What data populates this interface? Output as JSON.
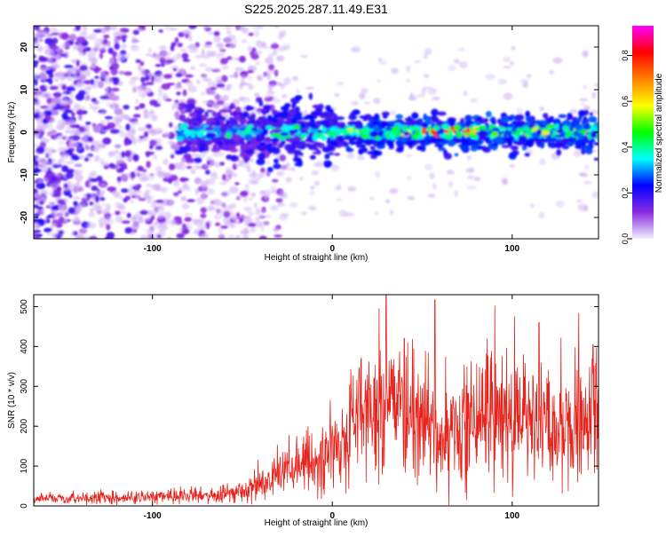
{
  "title": "S225.2025.287.11.49.E31",
  "chart_data": [
    {
      "type": "heatmap",
      "xlabel": "Height of straight line (km)",
      "ylabel": "Frequency (Hz)",
      "xlim": [
        -166,
        148
      ],
      "ylim": [
        -25,
        25
      ],
      "xticks": [
        -100,
        0,
        100
      ],
      "yticks": [
        20,
        10,
        0,
        -10,
        -20
      ],
      "grid": false,
      "colorbar": {
        "label": "Normalized spectral amplitude",
        "range": [
          0,
          0.93
        ],
        "ticks": [
          "0.0",
          "0.2",
          "0.4",
          "0.6",
          "0.8"
        ],
        "tick_values": [
          0,
          0.2,
          0.4,
          0.6,
          0.8
        ],
        "colors": [
          "#f0f0ff",
          "#8a2be2",
          "#0000ff",
          "#00ffff",
          "#00ff00",
          "#ffff00",
          "#ff8000",
          "#ff0000",
          "#ff00ff"
        ]
      },
      "ridge_center_hz": 0,
      "ridge_extent_km": [
        -85,
        148
      ],
      "peak_region_km": [
        50,
        80
      ]
    },
    {
      "type": "line",
      "xlabel": "Height of straight line (km)",
      "ylabel": "SNR (10 * v/v)",
      "xlim": [
        -166,
        148
      ],
      "ylim": [
        0,
        530
      ],
      "xticks": [
        -100,
        0,
        100
      ],
      "yticks": [
        0,
        100,
        200,
        300,
        400,
        500
      ],
      "grid": false,
      "line_color": "#e8211a",
      "series": [
        {
          "name": "SNR",
          "x": [
            -166,
            -150,
            -130,
            -110,
            -90,
            -70,
            -60,
            -50,
            -40,
            -30,
            -20,
            -10,
            0,
            5,
            10,
            20,
            30,
            40,
            50,
            60,
            70,
            80,
            90,
            100,
            110,
            120,
            130,
            140,
            148
          ],
          "values": [
            18,
            18,
            20,
            22,
            24,
            25,
            28,
            35,
            55,
            75,
            95,
            110,
            130,
            150,
            190,
            210,
            220,
            225,
            215,
            200,
            190,
            205,
            230,
            210,
            200,
            195,
            205,
            215,
            210
          ],
          "peaks": [
            [
              30,
              530
            ],
            [
              57,
              517
            ],
            [
              40,
              420
            ],
            [
              16,
              370
            ],
            [
              115,
              460
            ],
            [
              135,
              398
            ],
            [
              145,
              405
            ]
          ]
        }
      ]
    }
  ]
}
